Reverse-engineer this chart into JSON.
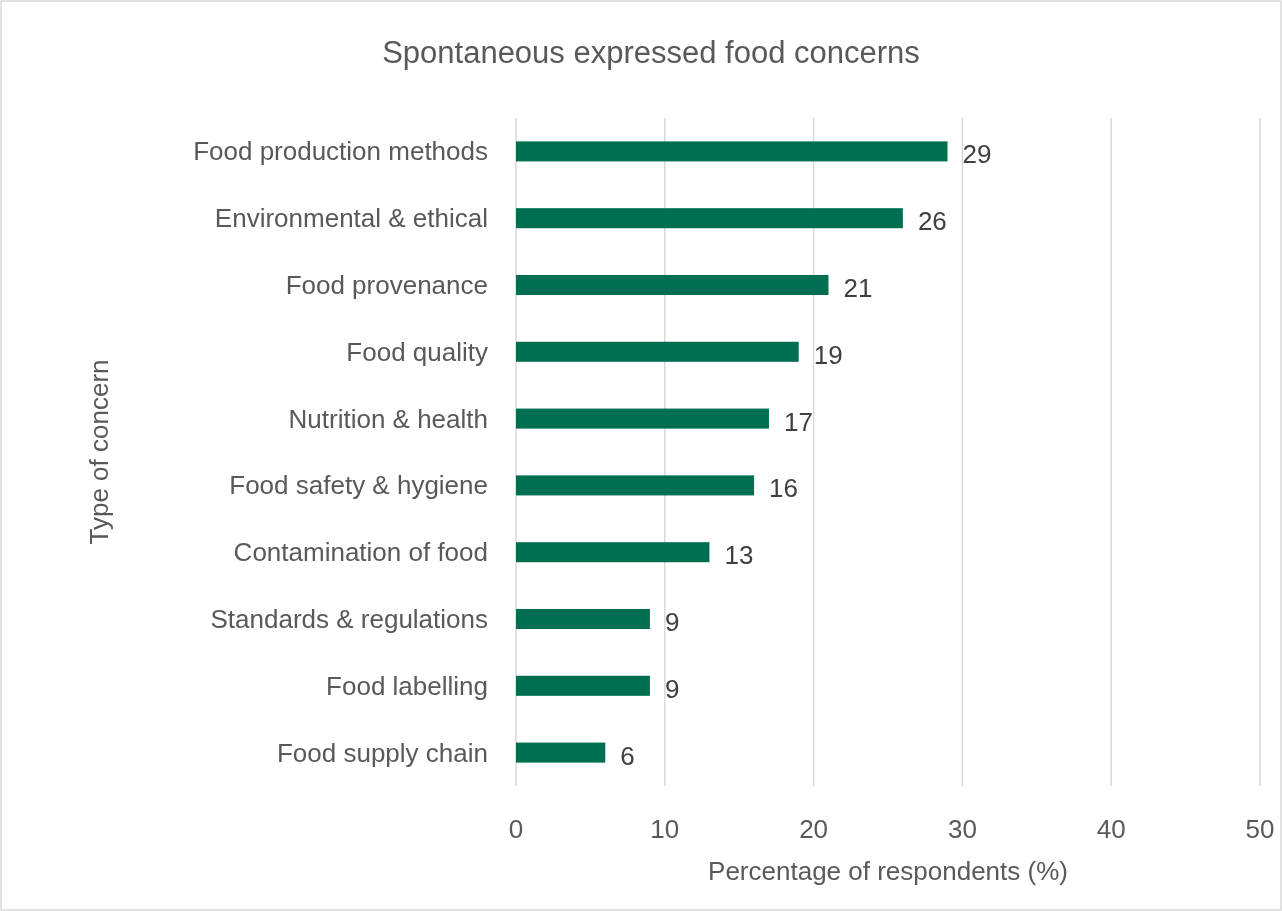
{
  "chart_data": {
    "type": "bar",
    "orientation": "horizontal",
    "title": "Spontaneous expressed food concerns",
    "xlabel": "Percentage of respondents (%)",
    "ylabel": "Type of concern",
    "categories": [
      "Food production methods",
      "Environmental & ethical",
      "Food provenance",
      "Food quality",
      "Nutrition & health",
      "Food safety & hygiene",
      "Contamination of food",
      "Standards & regulations",
      "Food labelling",
      "Food supply chain"
    ],
    "values": [
      29,
      26,
      21,
      19,
      17,
      16,
      13,
      9,
      9,
      6
    ],
    "color": "#006f51",
    "xlim": [
      0,
      50
    ],
    "xticks": [
      0,
      10,
      20,
      30,
      40,
      50
    ],
    "grid": "x",
    "data_labels": true
  }
}
